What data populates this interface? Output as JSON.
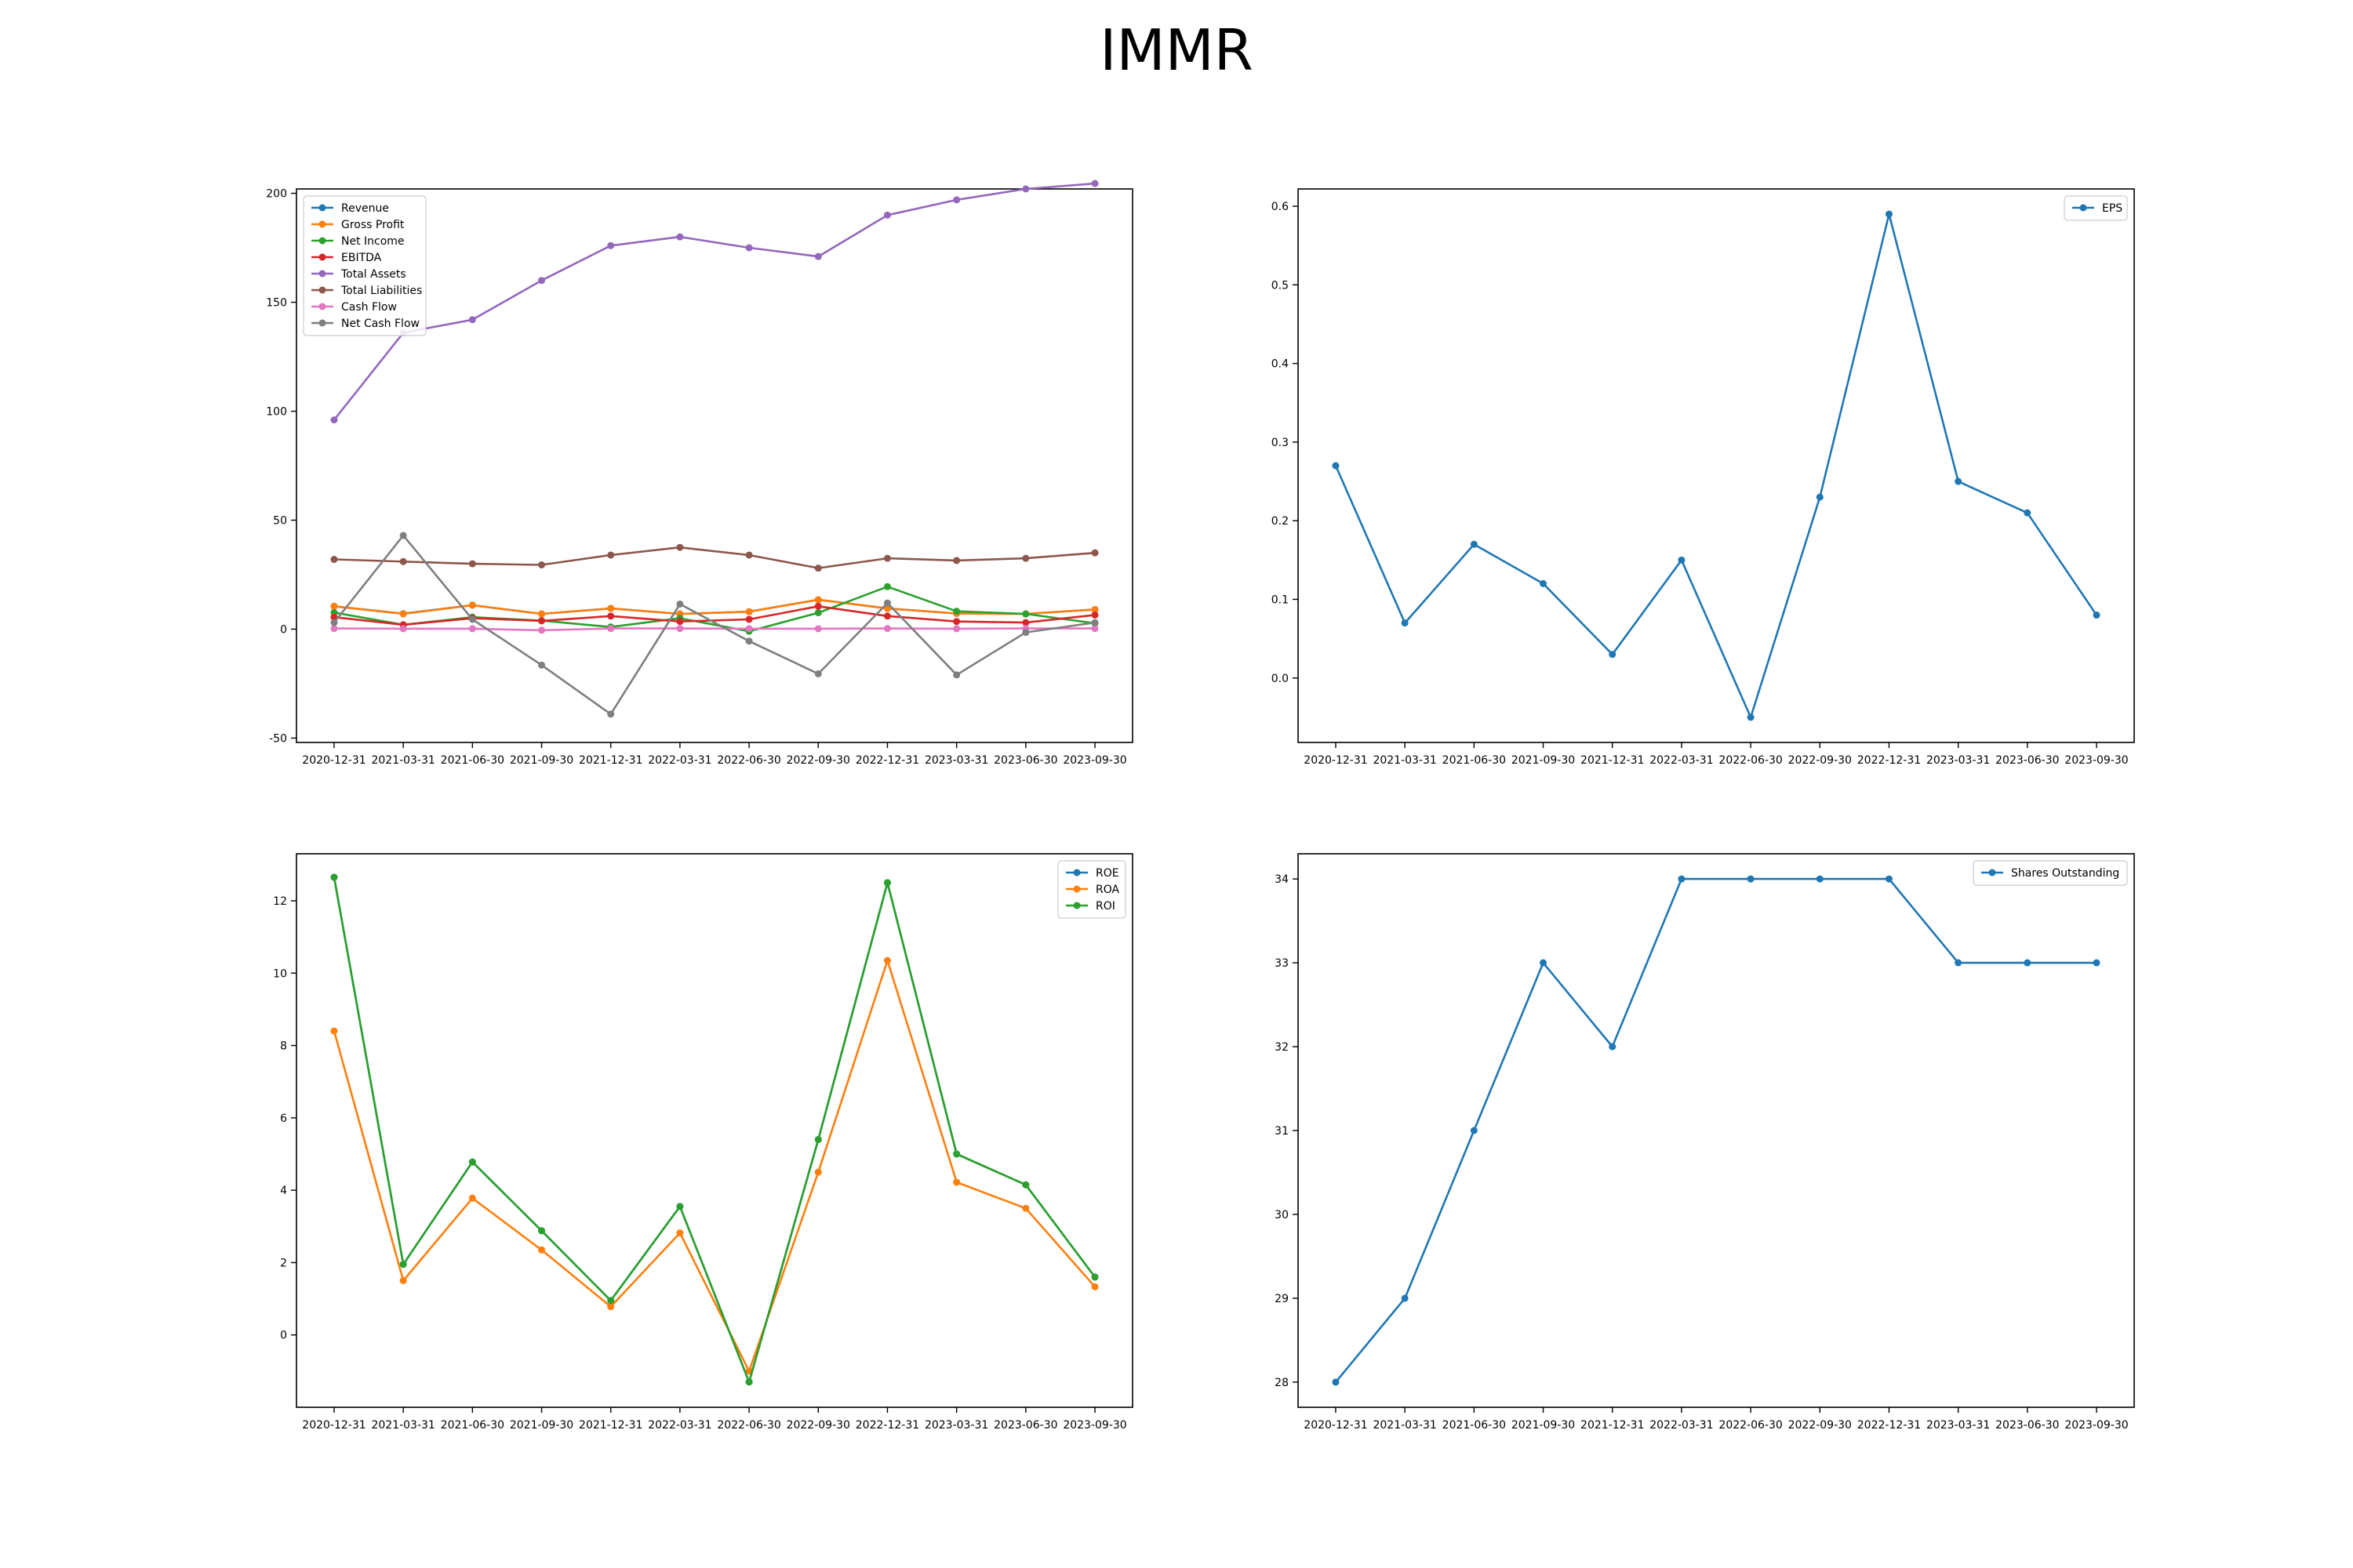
{
  "figure": {
    "title": "IMMR"
  },
  "chart_data": [
    {
      "type": "line",
      "title": "",
      "xlabel": "",
      "ylabel": "",
      "categories": [
        "2020-12-31",
        "2021-03-31",
        "2021-06-30",
        "2021-09-30",
        "2021-12-31",
        "2022-03-31",
        "2022-06-30",
        "2022-09-30",
        "2022-12-31",
        "2023-03-31",
        "2023-06-30",
        "2023-09-30"
      ],
      "ylim": [
        -52,
        202
      ],
      "yticks": [
        -50,
        0,
        50,
        100,
        150,
        200
      ],
      "grid": false,
      "legend": "top-left",
      "series": [
        {
          "name": "Revenue",
          "color": "#1f77b4",
          "values": [
            10.5,
            7.1,
            11.0,
            7.0,
            9.5,
            7.0,
            8.0,
            13.5,
            9.5,
            7.2,
            7.0,
            9.0
          ]
        },
        {
          "name": "Gross Profit",
          "color": "#ff7f0e",
          "values": [
            10.5,
            7.0,
            11.0,
            7.0,
            9.5,
            7.0,
            8.0,
            13.5,
            9.5,
            7.2,
            7.0,
            9.0
          ]
        },
        {
          "name": "Net Income",
          "color": "#2ca02c",
          "values": [
            7.6,
            2.0,
            5.5,
            3.9,
            1.0,
            5.0,
            -1.0,
            7.5,
            19.5,
            8.2,
            7.0,
            2.7
          ]
        },
        {
          "name": "EBITDA",
          "color": "#d62728",
          "values": [
            5.5,
            2.0,
            5.0,
            3.8,
            6.0,
            3.5,
            4.5,
            10.5,
            6.0,
            3.5,
            3.0,
            6.5
          ]
        },
        {
          "name": "Total Assets",
          "color": "#9467bd",
          "values": [
            96.0,
            136.0,
            142.0,
            160.0,
            176.0,
            180.0,
            175.0,
            171.0,
            190.0,
            197.0,
            202.0,
            204.5
          ]
        },
        {
          "name": "Total Liabilities",
          "color": "#8c564b",
          "values": [
            32.0,
            31.0,
            30.0,
            29.5,
            34.0,
            37.5,
            34.0,
            28.0,
            32.5,
            31.5,
            32.5,
            35.0
          ]
        },
        {
          "name": "Cash Flow",
          "color": "#e377c2",
          "values": [
            0.3,
            0.2,
            0.2,
            -0.5,
            0.3,
            0.3,
            0.2,
            0.2,
            0.3,
            0.2,
            0.3,
            0.3
          ]
        },
        {
          "name": "Net Cash Flow",
          "color": "#7f7f7f",
          "values": [
            3.0,
            43.0,
            4.5,
            -16.5,
            -39.0,
            11.5,
            -5.5,
            -20.5,
            12.0,
            -21.0,
            -1.5,
            3.0
          ]
        }
      ]
    },
    {
      "type": "line",
      "title": "",
      "xlabel": "",
      "ylabel": "",
      "categories": [
        "2020-12-31",
        "2021-03-31",
        "2021-06-30",
        "2021-09-30",
        "2021-12-31",
        "2022-03-31",
        "2022-06-30",
        "2022-09-30",
        "2022-12-31",
        "2023-03-31",
        "2023-06-30",
        "2023-09-30"
      ],
      "ylim": [
        -0.082,
        0.622
      ],
      "yticks": [
        0.0,
        0.1,
        0.2,
        0.3,
        0.4,
        0.5,
        0.6
      ],
      "grid": false,
      "legend": "top-right",
      "series": [
        {
          "name": "EPS",
          "color": "#1f77b4",
          "values": [
            0.27,
            0.07,
            0.17,
            0.12,
            0.03,
            0.15,
            -0.05,
            0.23,
            0.59,
            0.25,
            0.21,
            0.08
          ]
        }
      ]
    },
    {
      "type": "line",
      "title": "",
      "xlabel": "",
      "ylabel": "",
      "categories": [
        "2020-12-31",
        "2021-03-31",
        "2021-06-30",
        "2021-09-30",
        "2021-12-31",
        "2022-03-31",
        "2022-06-30",
        "2022-09-30",
        "2022-12-31",
        "2023-03-31",
        "2023-06-30",
        "2023-09-30"
      ],
      "ylim": [
        -2.0,
        13.3
      ],
      "yticks": [
        0,
        2,
        4,
        6,
        8,
        10,
        12
      ],
      "grid": false,
      "legend": "top-right",
      "series": [
        {
          "name": "ROE",
          "color": "#1f77b4",
          "values": [
            12.65,
            1.95,
            4.78,
            2.88,
            0.95,
            3.55,
            -1.3,
            5.4,
            12.5,
            5.0,
            4.15,
            1.6
          ]
        },
        {
          "name": "ROA",
          "color": "#ff7f0e",
          "values": [
            8.4,
            1.5,
            3.78,
            2.35,
            0.78,
            2.82,
            -1.0,
            4.5,
            10.35,
            4.22,
            3.5,
            1.33
          ]
        },
        {
          "name": "ROI",
          "color": "#2ca02c",
          "values": [
            12.65,
            1.95,
            4.78,
            2.88,
            0.95,
            3.55,
            -1.3,
            5.4,
            12.5,
            5.0,
            4.15,
            1.6
          ]
        }
      ]
    },
    {
      "type": "line",
      "title": "",
      "xlabel": "",
      "ylabel": "",
      "categories": [
        "2020-12-31",
        "2021-03-31",
        "2021-06-30",
        "2021-09-30",
        "2021-12-31",
        "2022-03-31",
        "2022-06-30",
        "2022-09-30",
        "2022-12-31",
        "2023-03-31",
        "2023-06-30",
        "2023-09-30"
      ],
      "ylim": [
        27.7,
        34.3
      ],
      "yticks": [
        28,
        29,
        30,
        31,
        32,
        33,
        34
      ],
      "grid": false,
      "legend": "top-right",
      "series": [
        {
          "name": "Shares Outstanding",
          "color": "#1f77b4",
          "values": [
            28,
            29,
            31,
            33,
            32,
            34,
            34,
            34,
            34,
            33,
            33,
            33
          ]
        }
      ]
    }
  ]
}
